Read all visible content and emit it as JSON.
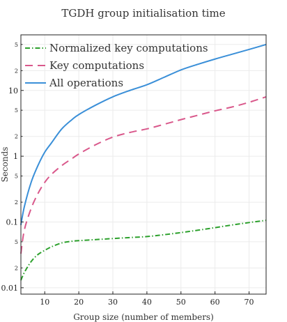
{
  "chart_data": {
    "type": "line",
    "title": "TGDH group initialisation time",
    "xlabel": "Group size (number of members)",
    "ylabel": "Seconds",
    "yscale": "log",
    "xlim": [
      3,
      75
    ],
    "ylim": [
      0.008,
      70
    ],
    "grid": true,
    "legend_position": "top-left",
    "x_ticks": [
      10,
      20,
      30,
      40,
      50,
      60,
      70
    ],
    "y_major_ticks": [
      {
        "value": 0.01,
        "label": "0.01"
      },
      {
        "value": 0.1,
        "label": "0.1"
      },
      {
        "value": 1,
        "label": "1"
      },
      {
        "value": 10,
        "label": "10"
      }
    ],
    "y_minor_ticks": [
      {
        "value": 0.02,
        "label": "2"
      },
      {
        "value": 0.05,
        "label": "5"
      },
      {
        "value": 0.2,
        "label": "2"
      },
      {
        "value": 0.5,
        "label": "5"
      },
      {
        "value": 2,
        "label": "2"
      },
      {
        "value": 5,
        "label": "5"
      },
      {
        "value": 20,
        "label": "2"
      },
      {
        "value": 50,
        "label": "5"
      }
    ],
    "series": [
      {
        "name": "Normalized key computations",
        "color": "#2ca02c",
        "dash": "dash-dot",
        "x": [
          3,
          4,
          6,
          8,
          10,
          12,
          15,
          18,
          20,
          25,
          30,
          35,
          40,
          45,
          50,
          55,
          60,
          65,
          70,
          75
        ],
        "y": [
          0.013,
          0.017,
          0.025,
          0.032,
          0.037,
          0.042,
          0.048,
          0.051,
          0.052,
          0.054,
          0.056,
          0.058,
          0.06,
          0.064,
          0.069,
          0.075,
          0.082,
          0.09,
          0.098,
          0.106
        ]
      },
      {
        "name": "Key computations",
        "color": "#d9588b",
        "dash": "dashed",
        "x": [
          3,
          4,
          6,
          8,
          10,
          12,
          15,
          18,
          20,
          25,
          30,
          35,
          40,
          45,
          50,
          55,
          60,
          65,
          70,
          75
        ],
        "y": [
          0.033,
          0.075,
          0.16,
          0.27,
          0.4,
          0.53,
          0.72,
          0.92,
          1.08,
          1.5,
          1.95,
          2.3,
          2.6,
          3.05,
          3.6,
          4.2,
          4.9,
          5.6,
          6.6,
          8.0
        ]
      },
      {
        "name": "All operations",
        "color": "#3a8fd8",
        "dash": "solid",
        "x": [
          3,
          4,
          6,
          8,
          10,
          12,
          15,
          18,
          20,
          25,
          30,
          35,
          40,
          45,
          50,
          55,
          60,
          65,
          70,
          75
        ],
        "y": [
          0.09,
          0.17,
          0.4,
          0.72,
          1.15,
          1.6,
          2.6,
          3.6,
          4.3,
          6.0,
          8.0,
          10.0,
          12.2,
          15.8,
          20.5,
          25.0,
          30.0,
          35.5,
          42.0,
          50.0
        ]
      }
    ]
  }
}
